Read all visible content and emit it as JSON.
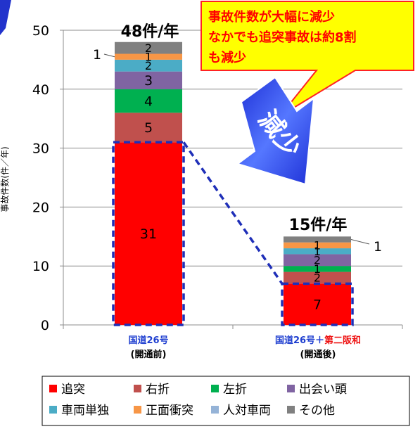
{
  "chart_data": {
    "type": "bar",
    "stacked": true,
    "ylabel": "事故件数(件／年)",
    "ylim": [
      0,
      50
    ],
    "yticks": [
      0,
      10,
      20,
      30,
      40,
      50
    ],
    "grid": true,
    "categories": [
      {
        "line1": "国道26号",
        "line2": "(開通前)",
        "line1_parts": [
          {
            "text": "国道26号",
            "color": "#1f3fd0"
          }
        ]
      },
      {
        "line1": "国道26号＋第二阪和",
        "line2": "(開通後)",
        "line1_parts": [
          {
            "text": "国道26号＋",
            "color": "#1f3fd0"
          },
          {
            "text": "第二阪和",
            "color": "#ee1111"
          }
        ]
      }
    ],
    "totals_labels": [
      "48件/年",
      "15件/年"
    ],
    "series": [
      {
        "name": "追突",
        "color": "#ff0000",
        "values": [
          31,
          7
        ],
        "labels": [
          "31",
          "7"
        ]
      },
      {
        "name": "右折",
        "color": "#c0504d",
        "values": [
          5,
          2
        ],
        "labels": [
          "5",
          "2"
        ]
      },
      {
        "name": "左折",
        "color": "#00b050",
        "values": [
          4,
          1
        ],
        "labels": [
          "4",
          "1"
        ]
      },
      {
        "name": "出会い頭",
        "color": "#8064a2",
        "values": [
          3,
          2
        ],
        "labels": [
          "3",
          "2"
        ]
      },
      {
        "name": "車両単独",
        "color": "#4bacc6",
        "values": [
          2,
          1
        ],
        "labels": [
          "2",
          "1"
        ]
      },
      {
        "name": "正面衝突",
        "color": "#f79646",
        "values": [
          1,
          1
        ],
        "labels": [
          "1",
          "1"
        ]
      },
      {
        "name": "人対車両",
        "color": "#95b3d7",
        "values": [
          0,
          0
        ],
        "labels": [
          "",
          ""
        ]
      },
      {
        "name": "その他",
        "color": "#808080",
        "values": [
          2,
          1
        ],
        "labels": [
          "2",
          ""
        ]
      }
    ],
    "legend": {
      "position": "bottom"
    },
    "callout_lines": [
      "事故件数が大幅に減少",
      "なかでも追突事故は約8割",
      "も減少"
    ],
    "arrow_label": "減少"
  }
}
